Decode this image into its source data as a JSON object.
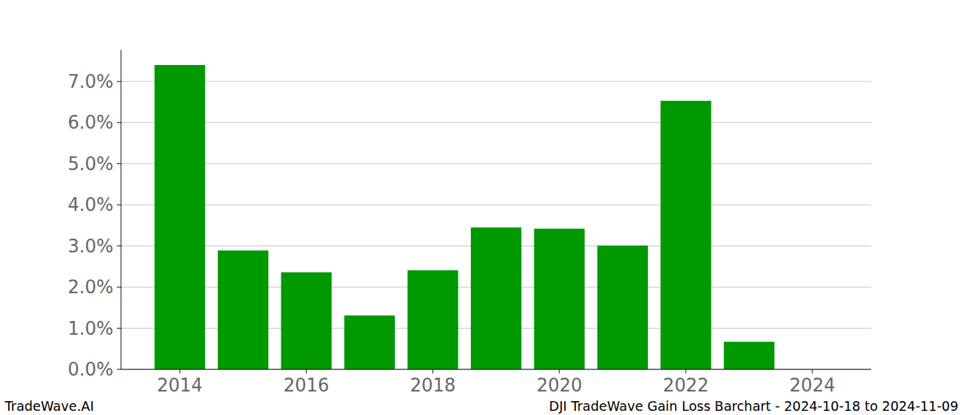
{
  "chart_data": {
    "type": "bar",
    "title": "DJI TradeWave Gain Loss Barchart - 2024-10-18 to 2024-11-09",
    "source": "TradeWave.AI",
    "x": [
      2014,
      2015,
      2016,
      2017,
      2018,
      2019,
      2020,
      2021,
      2022,
      2023
    ],
    "values": [
      7.4,
      2.89,
      2.36,
      1.31,
      2.41,
      3.45,
      3.42,
      3.01,
      6.53,
      0.67
    ],
    "color": "#009900",
    "xlim": [
      2013.07,
      2024.93
    ],
    "xticks": [
      2014,
      2016,
      2018,
      2020,
      2022,
      2024
    ],
    "ylim": [
      0,
      7.77
    ],
    "yticks": [
      {
        "value": 0,
        "label": "0.0%"
      },
      {
        "value": 1,
        "label": "1.0%"
      },
      {
        "value": 2,
        "label": "2.0%"
      },
      {
        "value": 3,
        "label": "3.0%"
      },
      {
        "value": 4,
        "label": "4.0%"
      },
      {
        "value": 5,
        "label": "5.0%"
      },
      {
        "value": 6,
        "label": "6.0%"
      },
      {
        "value": 7,
        "label": "7.0%"
      }
    ],
    "grid": true
  }
}
